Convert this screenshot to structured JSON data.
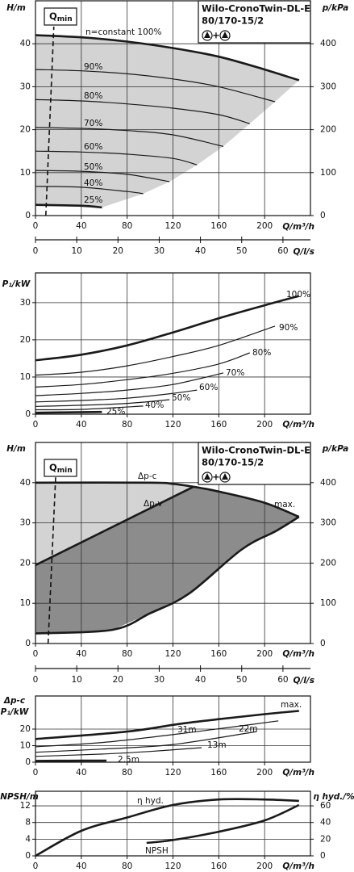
{
  "chart_data": [
    {
      "type": "line",
      "title": [
        "Wilo-CronoTwin-DL-E",
        "80/170-15/2"
      ],
      "pump_joiner": "+",
      "ylabel": [
        "H/m"
      ],
      "y2label": "p/kPa",
      "xlabel": "Q/m³/h",
      "x2label": "Q/l/s",
      "qmin_label": [
        "Q",
        "min"
      ],
      "xlim": [
        0,
        240
      ],
      "xticks": [
        0,
        40,
        80,
        120,
        160,
        200
      ],
      "x2lim": [
        0,
        66.67
      ],
      "x2ticks": [
        0,
        10,
        20,
        30,
        40,
        50,
        60
      ],
      "ylim": [
        0,
        50
      ],
      "yticks": [
        0,
        10,
        20,
        30,
        40
      ],
      "y2lim": [
        0,
        500
      ],
      "y2ticks": [
        0,
        100,
        200,
        300,
        400
      ],
      "grid": true,
      "fill_colors": [
        "#d3d3d3"
      ],
      "qmin_x": [
        9,
        16
      ],
      "qmin_y": [
        0,
        44
      ],
      "series": [
        {
          "name": "n=constant 100%",
          "color": "#1a1a1a",
          "bold": true,
          "x": [
            0,
            40,
            80,
            120,
            160,
            200,
            230
          ],
          "values": [
            42,
            41.5,
            40.5,
            39,
            37,
            34,
            31.5
          ]
        },
        {
          "name": "90%",
          "color": "#1a1a1a",
          "x": [
            0,
            40,
            80,
            120,
            160,
            209
          ],
          "values": [
            34,
            33.7,
            33,
            31.8,
            30,
            26.5
          ]
        },
        {
          "name": "80%",
          "color": "#1a1a1a",
          "x": [
            0,
            40,
            80,
            120,
            160,
            187
          ],
          "values": [
            27,
            26.7,
            26,
            25,
            23.5,
            21.4
          ]
        },
        {
          "name": "70%",
          "color": "#1a1a1a",
          "x": [
            0,
            40,
            80,
            120,
            164
          ],
          "values": [
            20.5,
            20.3,
            19.8,
            18.8,
            16.1
          ]
        },
        {
          "name": "60%",
          "color": "#1a1a1a",
          "x": [
            0,
            40,
            80,
            120,
            141
          ],
          "values": [
            15,
            14.8,
            14.3,
            13.3,
            11.8
          ]
        },
        {
          "name": "50%",
          "color": "#1a1a1a",
          "x": [
            0,
            40,
            80,
            117
          ],
          "values": [
            10.5,
            10.3,
            9.6,
            7.9
          ]
        },
        {
          "name": "40%",
          "color": "#1a1a1a",
          "x": [
            0,
            40,
            80,
            94
          ],
          "values": [
            6.8,
            6.6,
            5.6,
            5.1
          ]
        },
        {
          "name": "25%",
          "color": "#1a1a1a",
          "bold": true,
          "x": [
            0,
            40,
            58
          ],
          "values": [
            2.5,
            2.3,
            1.9
          ]
        }
      ]
    },
    {
      "type": "line",
      "ylabel": [
        "P₁/kW"
      ],
      "xlabel": "Q/m³/h",
      "xlim": [
        0,
        240
      ],
      "xticks": [
        0,
        40,
        80,
        120,
        160,
        200
      ],
      "ylim": [
        0,
        38
      ],
      "yticks": [
        0,
        10,
        20,
        30
      ],
      "grid": true,
      "series": [
        {
          "name": "100%",
          "color": "#1a1a1a",
          "bold": true,
          "x": [
            0,
            40,
            80,
            120,
            160,
            200,
            230
          ],
          "values": [
            14.5,
            16,
            18.5,
            22,
            25.8,
            29.3,
            31.8
          ]
        },
        {
          "name": "90%",
          "color": "#1a1a1a",
          "x": [
            0,
            40,
            80,
            120,
            160,
            209
          ],
          "values": [
            10.5,
            11.3,
            13,
            15.5,
            18.5,
            23.7
          ]
        },
        {
          "name": "80%",
          "color": "#1a1a1a",
          "x": [
            0,
            40,
            80,
            120,
            160,
            187
          ],
          "values": [
            7.3,
            8,
            9.3,
            11,
            13.5,
            16.5
          ]
        },
        {
          "name": "70%",
          "color": "#1a1a1a",
          "x": [
            0,
            40,
            80,
            120,
            164
          ],
          "values": [
            5,
            5.6,
            6.5,
            8,
            11.1
          ]
        },
        {
          "name": "60%",
          "color": "#1a1a1a",
          "x": [
            0,
            40,
            80,
            120,
            141
          ],
          "values": [
            3.3,
            3.7,
            4.3,
            5.6,
            6.5
          ]
        },
        {
          "name": "50%",
          "color": "#1a1a1a",
          "x": [
            0,
            40,
            80,
            117
          ],
          "values": [
            2.1,
            2.4,
            2.9,
            3.9
          ]
        },
        {
          "name": "40%",
          "color": "#1a1a1a",
          "x": [
            0,
            40,
            94
          ],
          "values": [
            1.2,
            1.3,
            2.2
          ]
        },
        {
          "name": "25%",
          "color": "#1a1a1a",
          "bold": true,
          "x": [
            0,
            58
          ],
          "values": [
            0.4,
            0.6
          ]
        }
      ]
    },
    {
      "type": "line",
      "title": [
        "Wilo-CronoTwin-DL-E",
        "80/170-15/2"
      ],
      "pump_joiner": "+",
      "ylabel": [
        "H/m"
      ],
      "y2label": "p/kPa",
      "xlabel": "Q/m³/h",
      "x2label": "Q/l/s",
      "qmin_label": [
        "Q",
        "min"
      ],
      "xlim": [
        0,
        240
      ],
      "xticks": [
        0,
        40,
        80,
        120,
        160,
        200
      ],
      "x2lim": [
        0,
        66.67
      ],
      "x2ticks": [
        0,
        10,
        20,
        30,
        40,
        50,
        60
      ],
      "ylim": [
        0,
        50
      ],
      "yticks": [
        0,
        10,
        20,
        30,
        40
      ],
      "y2lim": [
        0,
        500
      ],
      "y2ticks": [
        0,
        100,
        200,
        300,
        400
      ],
      "grid": true,
      "fill_colors": [
        "#d3d3d3",
        "#8c8c8c"
      ],
      "qmin_x": [
        11,
        18
      ],
      "qmin_y": [
        0,
        44
      ],
      "series": [
        {
          "name": "Δp-c",
          "color": "#1a1a1a",
          "bold": true,
          "x": [
            0,
            100,
            120,
            138
          ],
          "values": [
            40,
            40,
            39.7,
            39
          ]
        },
        {
          "name": "Δp-v",
          "color": "#1a1a1a",
          "bold": true,
          "x": [
            0,
            138
          ],
          "values": [
            19.5,
            39
          ]
        },
        {
          "name": "max.",
          "color": "#1a1a1a",
          "bold": true,
          "x": [
            138,
            160,
            200,
            230
          ],
          "values": [
            39,
            37.8,
            35,
            31.5
          ]
        },
        {
          "color": "#1a1a1a",
          "bold": true,
          "x": [
            0,
            67,
            100,
            134,
            180,
            210,
            230
          ],
          "values": [
            2.5,
            3.4,
            7.5,
            12.4,
            23.4,
            28,
            31.5
          ]
        }
      ]
    },
    {
      "type": "line",
      "ylabel": [
        "Δp-c",
        "P₁/kW"
      ],
      "xlabel": "Q/m³/h",
      "xlim": [
        0,
        240
      ],
      "xticks": [
        0,
        40,
        80,
        120,
        160,
        200
      ],
      "ylim": [
        0,
        40
      ],
      "yticks": [
        0,
        10,
        20
      ],
      "grid": true,
      "series": [
        {
          "name": "max.",
          "color": "#1a1a1a",
          "bold": true,
          "x": [
            0,
            80,
            124,
            160,
            200,
            230
          ],
          "values": [
            14,
            18.5,
            23,
            26,
            29,
            31
          ]
        },
        {
          "name": "31m",
          "color": "#1a1a1a",
          "x": [
            0,
            60,
            124,
            180,
            212
          ],
          "values": [
            9.3,
            12,
            17,
            22,
            25
          ]
        },
        {
          "name": "22m",
          "color": "#1a1a1a",
          "x": [
            0,
            60,
            120,
            193
          ],
          "values": [
            6,
            8,
            10.7,
            18.5
          ]
        },
        {
          "name": "13m",
          "color": "#1a1a1a",
          "x": [
            0,
            60,
            100,
            145
          ],
          "values": [
            3.5,
            5,
            6.5,
            8.8
          ]
        },
        {
          "name": "2.5m",
          "color": "#1a1a1a",
          "bold": true,
          "x": [
            0,
            30,
            62
          ],
          "values": [
            0.8,
            0.9,
            1
          ]
        }
      ]
    },
    {
      "type": "line",
      "ylabel": [
        "NPSH/m"
      ],
      "y2label": "η hyd./%",
      "xlabel": "Q/m³/h",
      "xlim": [
        0,
        240
      ],
      "xticks": [
        0,
        40,
        80,
        120,
        160,
        200
      ],
      "ylim": [
        0,
        15.5
      ],
      "yticks": [
        0,
        4,
        8,
        12
      ],
      "y2lim": [
        0,
        77.5
      ],
      "y2ticks": [
        0,
        20,
        40,
        60
      ],
      "grid": true,
      "series": [
        {
          "name": "η hyd.",
          "color": "#1a1a1a",
          "bold": true,
          "axis": "y2",
          "x": [
            0,
            40,
            80,
            120,
            160,
            200,
            230
          ],
          "values": [
            0,
            30,
            46,
            61,
            67.6,
            67.6,
            66
          ]
        },
        {
          "name": "NPSH",
          "color": "#1a1a1a",
          "bold": true,
          "x": [
            97,
            120,
            160,
            200,
            230
          ],
          "values": [
            3.1,
            3.8,
            5.8,
            8.5,
            12.2
          ]
        }
      ]
    }
  ]
}
